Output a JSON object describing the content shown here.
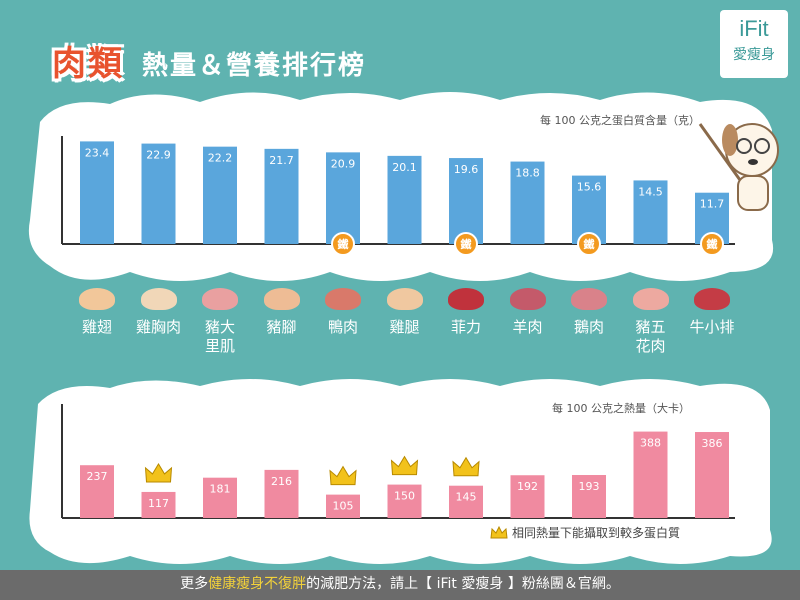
{
  "header": {
    "title_main": "肉類",
    "title_sub": "熱量＆營養排行榜"
  },
  "logo": {
    "line1": "iFit",
    "line2": "愛瘦身"
  },
  "chart_data": [
    {
      "type": "bar",
      "title": "每 100 公克之蛋白質含量（克）",
      "categories": [
        "雞翅",
        "雞胸肉",
        "豬大里肌",
        "豬腳",
        "鴨肉",
        "雞腿",
        "菲力",
        "羊肉",
        "鵝肉",
        "豬五花肉",
        "牛小排"
      ],
      "values": [
        23.4,
        22.9,
        22.2,
        21.7,
        20.9,
        20.1,
        19.6,
        18.8,
        15.6,
        14.5,
        11.7
      ],
      "color": "#5aa6dc",
      "ylim": [
        0,
        26
      ],
      "badges": {
        "label": "鐵",
        "categories": [
          "鴨肉",
          "菲力",
          "鵝肉",
          "牛小排"
        ],
        "color": "#f39a1f"
      }
    },
    {
      "type": "bar",
      "title": "每 100 公克之熱量（大卡）",
      "categories": [
        "雞翅",
        "雞胸肉",
        "豬大里肌",
        "豬腳",
        "鴨肉",
        "雞腿",
        "菲力",
        "羊肉",
        "鵝肉",
        "豬五花肉",
        "牛小排"
      ],
      "values": [
        237,
        117,
        181,
        216,
        105,
        150,
        145,
        192,
        193,
        388,
        386
      ],
      "color": "#f08aa0",
      "ylim": [
        0,
        440
      ],
      "crowned": [
        "雞胸肉",
        "鴨肉",
        "雞腿",
        "菲力"
      ]
    }
  ],
  "meats": [
    "雞翅",
    "雞胸肉",
    "豬大\n里肌",
    "豬腳",
    "鴨肉",
    "雞腿",
    "菲力",
    "羊肉",
    "鵝肉",
    "豬五\n花肉",
    "牛小排"
  ],
  "meat_colors": [
    "#f2c79a",
    "#f1d7b8",
    "#e9a0a0",
    "#eebc95",
    "#d9796a",
    "#f0c8a0",
    "#c0323c",
    "#c45a6a",
    "#d9828a",
    "#eda9a0",
    "#c43c45"
  ],
  "legend": {
    "text": "相同熱量下能攝取到較多蛋白質",
    "icon": "crown-icon"
  },
  "footer": {
    "pre": "更多",
    "highlight": "健康瘦身不復胖",
    "post": "的減肥方法，請上【 iFit 愛瘦身 】粉絲團＆官網。"
  }
}
